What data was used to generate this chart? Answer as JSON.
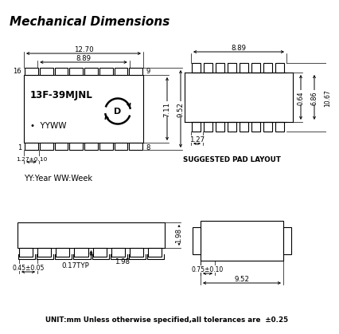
{
  "bg_color": "#ffffff",
  "line_color": "#000000",
  "title": "Mechanical Dimensions",
  "unit_note": "UNIT:mm Unless otherwise specified,all tolerances are  ±0.25",
  "pad_layout_label": "SUGGESTED PAD LAYOUT",
  "year_week_label": "YY:Year WW:Week",
  "part_name": "13F-39MJNL",
  "date_code": "YYWW",
  "dims": {
    "top_width": "12.70",
    "inner_width": "8.89",
    "height1": "7.11",
    "height2": "9.52",
    "pin_pitch": "1.27±0.10",
    "pad_width": "8.89",
    "pad_gap": "0.64",
    "pad_h1": "6.86",
    "pad_h2": "10.67",
    "pad_pitch": "1.27",
    "side_h": "1.98",
    "side_typ": "0.17TYP",
    "side_pitch": "0.45±0.05",
    "bot_width": "9.52",
    "bot_gap": "0.75±0.10"
  }
}
